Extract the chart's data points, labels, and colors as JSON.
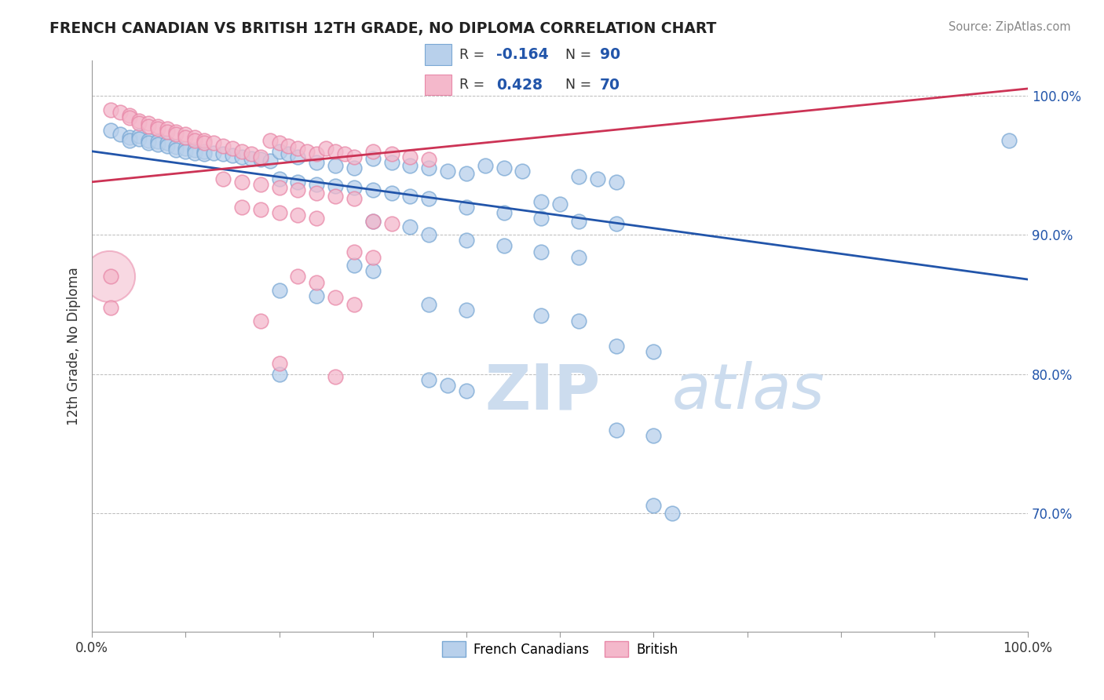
{
  "title": "FRENCH CANADIAN VS BRITISH 12TH GRADE, NO DIPLOMA CORRELATION CHART",
  "source": "Source: ZipAtlas.com",
  "ylabel": "12th Grade, No Diploma",
  "xmin": 0.0,
  "xmax": 1.0,
  "ymin": 0.615,
  "ymax": 1.025,
  "ytick_labels": [
    "70.0%",
    "80.0%",
    "90.0%",
    "100.0%"
  ],
  "ytick_values": [
    0.7,
    0.8,
    0.9,
    1.0
  ],
  "legend_blue_label": "French Canadians",
  "legend_pink_label": "British",
  "blue_R": "-0.164",
  "blue_N": "90",
  "pink_R": "0.428",
  "pink_N": "70",
  "blue_fill": "#b8d0eb",
  "pink_fill": "#f4b8cb",
  "blue_edge": "#7aa8d4",
  "pink_edge": "#e888a8",
  "blue_line_color": "#2255aa",
  "pink_line_color": "#cc3355",
  "watermark_color": "#ccdcee",
  "blue_line_y0": 0.96,
  "blue_line_y1": 0.868,
  "pink_line_y0": 0.938,
  "pink_line_y1": 1.005,
  "blue_points": [
    [
      0.02,
      0.975
    ],
    [
      0.03,
      0.972
    ],
    [
      0.04,
      0.97
    ],
    [
      0.04,
      0.968
    ],
    [
      0.05,
      0.971
    ],
    [
      0.05,
      0.969
    ],
    [
      0.06,
      0.968
    ],
    [
      0.06,
      0.966
    ],
    [
      0.07,
      0.967
    ],
    [
      0.07,
      0.965
    ],
    [
      0.08,
      0.966
    ],
    [
      0.08,
      0.964
    ],
    [
      0.09,
      0.963
    ],
    [
      0.09,
      0.961
    ],
    [
      0.1,
      0.962
    ],
    [
      0.1,
      0.96
    ],
    [
      0.11,
      0.961
    ],
    [
      0.11,
      0.959
    ],
    [
      0.12,
      0.96
    ],
    [
      0.12,
      0.958
    ],
    [
      0.13,
      0.959
    ],
    [
      0.14,
      0.958
    ],
    [
      0.15,
      0.957
    ],
    [
      0.16,
      0.956
    ],
    [
      0.17,
      0.955
    ],
    [
      0.18,
      0.954
    ],
    [
      0.19,
      0.953
    ],
    [
      0.2,
      0.96
    ],
    [
      0.21,
      0.958
    ],
    [
      0.22,
      0.956
    ],
    [
      0.24,
      0.952
    ],
    [
      0.26,
      0.95
    ],
    [
      0.28,
      0.948
    ],
    [
      0.3,
      0.955
    ],
    [
      0.32,
      0.952
    ],
    [
      0.34,
      0.95
    ],
    [
      0.36,
      0.948
    ],
    [
      0.38,
      0.946
    ],
    [
      0.4,
      0.944
    ],
    [
      0.42,
      0.95
    ],
    [
      0.44,
      0.948
    ],
    [
      0.46,
      0.946
    ],
    [
      0.2,
      0.94
    ],
    [
      0.22,
      0.938
    ],
    [
      0.24,
      0.936
    ],
    [
      0.26,
      0.935
    ],
    [
      0.28,
      0.934
    ],
    [
      0.3,
      0.932
    ],
    [
      0.32,
      0.93
    ],
    [
      0.34,
      0.928
    ],
    [
      0.36,
      0.926
    ],
    [
      0.48,
      0.924
    ],
    [
      0.5,
      0.922
    ],
    [
      0.52,
      0.942
    ],
    [
      0.54,
      0.94
    ],
    [
      0.56,
      0.938
    ],
    [
      0.4,
      0.92
    ],
    [
      0.44,
      0.916
    ],
    [
      0.48,
      0.912
    ],
    [
      0.52,
      0.91
    ],
    [
      0.56,
      0.908
    ],
    [
      0.3,
      0.91
    ],
    [
      0.34,
      0.906
    ],
    [
      0.36,
      0.9
    ],
    [
      0.4,
      0.896
    ],
    [
      0.44,
      0.892
    ],
    [
      0.48,
      0.888
    ],
    [
      0.52,
      0.884
    ],
    [
      0.28,
      0.878
    ],
    [
      0.3,
      0.874
    ],
    [
      0.2,
      0.86
    ],
    [
      0.24,
      0.856
    ],
    [
      0.36,
      0.85
    ],
    [
      0.4,
      0.846
    ],
    [
      0.48,
      0.842
    ],
    [
      0.52,
      0.838
    ],
    [
      0.56,
      0.82
    ],
    [
      0.6,
      0.816
    ],
    [
      0.2,
      0.8
    ],
    [
      0.36,
      0.796
    ],
    [
      0.38,
      0.792
    ],
    [
      0.4,
      0.788
    ],
    [
      0.56,
      0.76
    ],
    [
      0.6,
      0.756
    ],
    [
      0.6,
      0.706
    ],
    [
      0.62,
      0.7
    ],
    [
      0.98,
      0.968
    ]
  ],
  "pink_points": [
    [
      0.02,
      0.99
    ],
    [
      0.03,
      0.988
    ],
    [
      0.04,
      0.986
    ],
    [
      0.04,
      0.984
    ],
    [
      0.05,
      0.982
    ],
    [
      0.05,
      0.98
    ],
    [
      0.06,
      0.98
    ],
    [
      0.06,
      0.978
    ],
    [
      0.07,
      0.978
    ],
    [
      0.07,
      0.976
    ],
    [
      0.08,
      0.976
    ],
    [
      0.08,
      0.974
    ],
    [
      0.09,
      0.974
    ],
    [
      0.09,
      0.972
    ],
    [
      0.1,
      0.972
    ],
    [
      0.1,
      0.97
    ],
    [
      0.11,
      0.97
    ],
    [
      0.11,
      0.968
    ],
    [
      0.12,
      0.968
    ],
    [
      0.12,
      0.966
    ],
    [
      0.13,
      0.966
    ],
    [
      0.14,
      0.964
    ],
    [
      0.15,
      0.962
    ],
    [
      0.16,
      0.96
    ],
    [
      0.17,
      0.958
    ],
    [
      0.18,
      0.956
    ],
    [
      0.19,
      0.968
    ],
    [
      0.2,
      0.966
    ],
    [
      0.21,
      0.964
    ],
    [
      0.22,
      0.962
    ],
    [
      0.23,
      0.96
    ],
    [
      0.24,
      0.958
    ],
    [
      0.25,
      0.962
    ],
    [
      0.26,
      0.96
    ],
    [
      0.27,
      0.958
    ],
    [
      0.28,
      0.956
    ],
    [
      0.3,
      0.96
    ],
    [
      0.32,
      0.958
    ],
    [
      0.34,
      0.956
    ],
    [
      0.36,
      0.954
    ],
    [
      0.14,
      0.94
    ],
    [
      0.16,
      0.938
    ],
    [
      0.18,
      0.936
    ],
    [
      0.2,
      0.934
    ],
    [
      0.22,
      0.932
    ],
    [
      0.24,
      0.93
    ],
    [
      0.26,
      0.928
    ],
    [
      0.28,
      0.926
    ],
    [
      0.16,
      0.92
    ],
    [
      0.18,
      0.918
    ],
    [
      0.2,
      0.916
    ],
    [
      0.22,
      0.914
    ],
    [
      0.24,
      0.912
    ],
    [
      0.3,
      0.91
    ],
    [
      0.32,
      0.908
    ],
    [
      0.28,
      0.888
    ],
    [
      0.3,
      0.884
    ],
    [
      0.22,
      0.87
    ],
    [
      0.24,
      0.866
    ],
    [
      0.26,
      0.855
    ],
    [
      0.28,
      0.85
    ],
    [
      0.18,
      0.838
    ],
    [
      0.2,
      0.808
    ],
    [
      0.26,
      0.798
    ],
    [
      0.02,
      0.87
    ],
    [
      0.02,
      0.848
    ]
  ]
}
